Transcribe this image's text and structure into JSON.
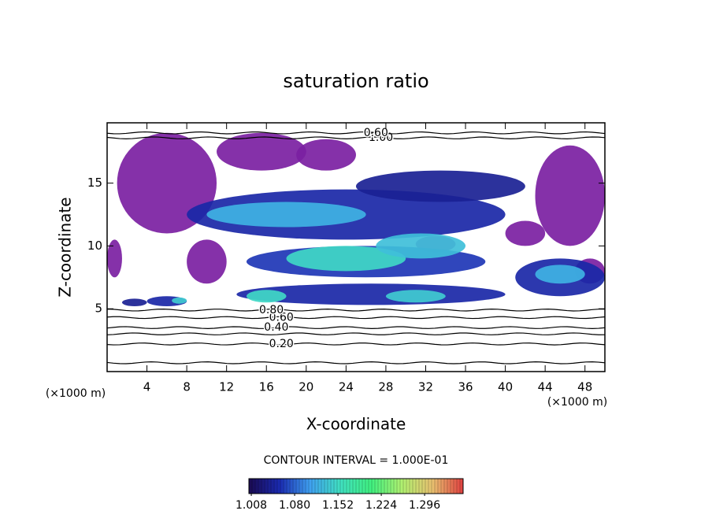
{
  "chart_data": {
    "type": "contour",
    "title": "saturation ratio",
    "xlabel": "X-coordinate",
    "ylabel": "Z-coordinate",
    "xunit": "(×1000 m)",
    "yunit": "(×1000 m)",
    "xlim": [
      0,
      50
    ],
    "ylim": [
      0,
      19.8
    ],
    "xticks": [
      4,
      8,
      12,
      16,
      20,
      24,
      28,
      32,
      36,
      40,
      44,
      48
    ],
    "yticks": [
      5,
      10,
      15
    ],
    "contour_interval": "CONTOUR INTERVAL = 1.000E-01",
    "clim": [
      1.004,
      1.36
    ],
    "below_color": "#7b1fa2",
    "colormap": [
      "#1a0a50",
      "#1a2ab0",
      "#3fa0f0",
      "#40e0c0",
      "#40f080",
      "#b0f070",
      "#e8c070",
      "#e04040"
    ],
    "cticks": [
      {
        "value": 1.008,
        "label": "1.008"
      },
      {
        "value": 1.08,
        "label": "1.080"
      },
      {
        "value": 1.152,
        "label": "1.152"
      },
      {
        "value": 1.224,
        "label": "1.224"
      },
      {
        "value": 1.296,
        "label": "1.296"
      }
    ],
    "patches": [
      {
        "x": [
          1,
          11
        ],
        "z": [
          11,
          19
        ],
        "value": 1.0
      },
      {
        "x": [
          0,
          1.5
        ],
        "z": [
          7.5,
          10.5
        ],
        "value": 1.0
      },
      {
        "x": [
          11,
          20
        ],
        "z": [
          16,
          19
        ],
        "value": 1.0
      },
      {
        "x": [
          19,
          25
        ],
        "z": [
          16,
          18.5
        ],
        "value": 1.0
      },
      {
        "x": [
          43,
          50
        ],
        "z": [
          10,
          18
        ],
        "value": 1.0
      },
      {
        "x": [
          40,
          44
        ],
        "z": [
          10,
          12
        ],
        "value": 1.0
      },
      {
        "x": [
          8,
          12
        ],
        "z": [
          7,
          10.5
        ],
        "value": 1.0
      },
      {
        "x": [
          31,
          35
        ],
        "z": [
          9.5,
          10.8
        ],
        "value": 1.0
      },
      {
        "x": [
          47,
          50
        ],
        "z": [
          7,
          9
        ],
        "value": 1.0
      },
      {
        "x": [
          8,
          40
        ],
        "z": [
          10.5,
          14.5
        ],
        "value": 1.05
      },
      {
        "x": [
          25,
          42
        ],
        "z": [
          13.5,
          16
        ],
        "value": 1.04
      },
      {
        "x": [
          14,
          38
        ],
        "z": [
          7.5,
          10
        ],
        "value": 1.06
      },
      {
        "x": [
          13,
          40
        ],
        "z": [
          5.3,
          7
        ],
        "value": 1.05
      },
      {
        "x": [
          41,
          50
        ],
        "z": [
          6,
          9
        ],
        "value": 1.05
      },
      {
        "x": [
          4,
          8
        ],
        "z": [
          5.2,
          6
        ],
        "value": 1.05
      },
      {
        "x": [
          1.5,
          4
        ],
        "z": [
          5.2,
          5.8
        ],
        "value": 1.04
      },
      {
        "x": [
          10,
          26
        ],
        "z": [
          11.5,
          13.5
        ],
        "value": 1.12
      },
      {
        "x": [
          18,
          30
        ],
        "z": [
          8,
          10
        ],
        "value": 1.15
      },
      {
        "x": [
          27,
          36
        ],
        "z": [
          9,
          11
        ],
        "value": 1.13
      },
      {
        "x": [
          28,
          34
        ],
        "z": [
          5.5,
          6.5
        ],
        "value": 1.14
      },
      {
        "x": [
          14,
          18
        ],
        "z": [
          5.5,
          6.5
        ],
        "value": 1.15
      },
      {
        "x": [
          43,
          48
        ],
        "z": [
          7,
          8.5
        ],
        "value": 1.12
      },
      {
        "x": [
          6.5,
          8
        ],
        "z": [
          5.4,
          5.9
        ],
        "value": 1.14
      }
    ],
    "contours": [
      {
        "level": 0.1,
        "z": 0.7
      },
      {
        "level": {
          "value": 0.2,
          "label": "0.20"
        },
        "z": 2.2,
        "label_x": 17.5
      },
      {
        "level": 0.3,
        "z": 3.0
      },
      {
        "level": {
          "value": 0.4,
          "label": "0.40"
        },
        "z": 3.5,
        "label_x": 17
      },
      {
        "level": {
          "value": 0.6,
          "label": "0.60"
        },
        "z": 4.3,
        "label_x": 17.5
      },
      {
        "level": {
          "value": 0.8,
          "label": "0.80"
        },
        "z": 4.9,
        "label_x": 16.5
      },
      {
        "level": {
          "value": 1.0,
          "label": "1.00"
        },
        "z": 18.6,
        "label_x": 27.5
      },
      {
        "level": {
          "value": 0.6,
          "label": "0.60"
        },
        "z": 19.0,
        "label_x": 27
      }
    ]
  }
}
